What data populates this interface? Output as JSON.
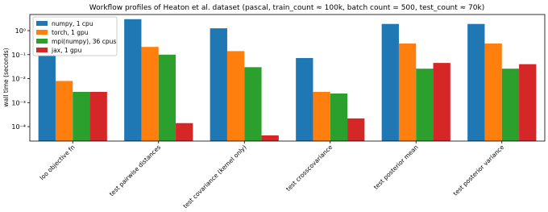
{
  "chart_data": {
    "type": "bar",
    "title": "Workflow profiles of Heaton et al. dataset (pascal, train_count ≈ 100k, batch count = 500, test_count ≈ 70k)",
    "y_label": "wall time (seconds)",
    "categories": [
      "loo objective fn",
      "test pairwise distances",
      "test covariance (kernel only)",
      "test crosscovariance",
      "test posterior mean",
      "test posterior variance"
    ],
    "series": [
      {
        "name": "numpy, 1 cpu",
        "color": "#1f77b4",
        "values": [
          0.09,
          3.0,
          1.25,
          0.072,
          1.9,
          1.9
        ]
      },
      {
        "name": "torch, 1 gpu",
        "color": "#ff7f0e",
        "values": [
          0.008,
          0.21,
          0.14,
          0.0028,
          0.29,
          0.29
        ]
      },
      {
        "name": "mpi(numpy), 36 cpus",
        "color": "#2ca02c",
        "values": [
          0.0028,
          0.1,
          0.03,
          0.0024,
          0.026,
          0.026
        ]
      },
      {
        "name": "jax, 1 gpu",
        "color": "#d62728",
        "values": [
          0.0028,
          0.00014,
          4.3e-05,
          0.00022,
          0.045,
          0.04
        ]
      }
    ],
    "log_scale": true,
    "ylim": [
      2.5e-05,
      4.7
    ],
    "yticks": [
      {
        "value": 0.0001,
        "label": "10⁻⁴"
      },
      {
        "value": 0.001,
        "label": "10⁻³"
      },
      {
        "value": 0.01,
        "label": "10⁻²"
      },
      {
        "value": 0.1,
        "label": "10⁻¹"
      },
      {
        "value": 1,
        "label": "10⁰"
      }
    ],
    "legend": "upper left"
  }
}
